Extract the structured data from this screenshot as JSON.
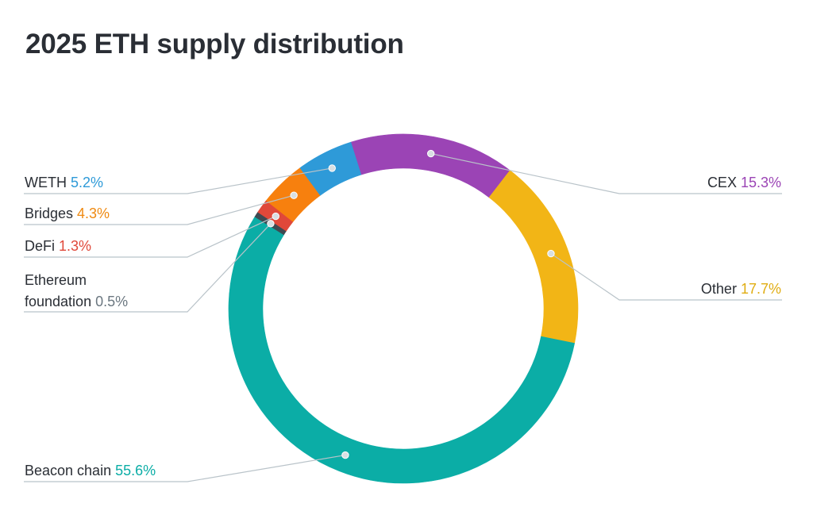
{
  "title": "2025 ETH supply distribution",
  "chart_data": {
    "type": "pie",
    "title": "2025 ETH supply distribution",
    "labels": [
      "CEX",
      "Other",
      "Beacon chain",
      "Ethereum foundation",
      "DeFi",
      "Bridges",
      "WETH"
    ],
    "label_lines": [
      [
        "CEX"
      ],
      [
        "Other"
      ],
      [
        "Beacon chain"
      ],
      [
        "Ethereum",
        "foundation"
      ],
      [
        "DeFi"
      ],
      [
        "Bridges"
      ],
      [
        "WETH"
      ]
    ],
    "values": [
      15.3,
      17.7,
      55.6,
      0.5,
      1.3,
      4.3,
      5.2
    ],
    "value_labels": [
      "15.3%",
      "17.7%",
      "55.6%",
      "0.5%",
      "1.3%",
      "4.3%",
      "5.2%"
    ],
    "colors": [
      "#9b44b5",
      "#f2b516",
      "#0bada6",
      "#3e4a52",
      "#e0483a",
      "#f7800e",
      "#2e9ad8"
    ],
    "label_color": "#2a2e35",
    "value_colors": [
      "#9b44b5",
      "#e0ad12",
      "#0bada6",
      "#6b7780",
      "#e0483a",
      "#ef8a12",
      "#2e9ad8"
    ],
    "legend_sides": [
      "right",
      "right",
      "left",
      "left",
      "left",
      "left",
      "left"
    ],
    "style": "donut"
  }
}
